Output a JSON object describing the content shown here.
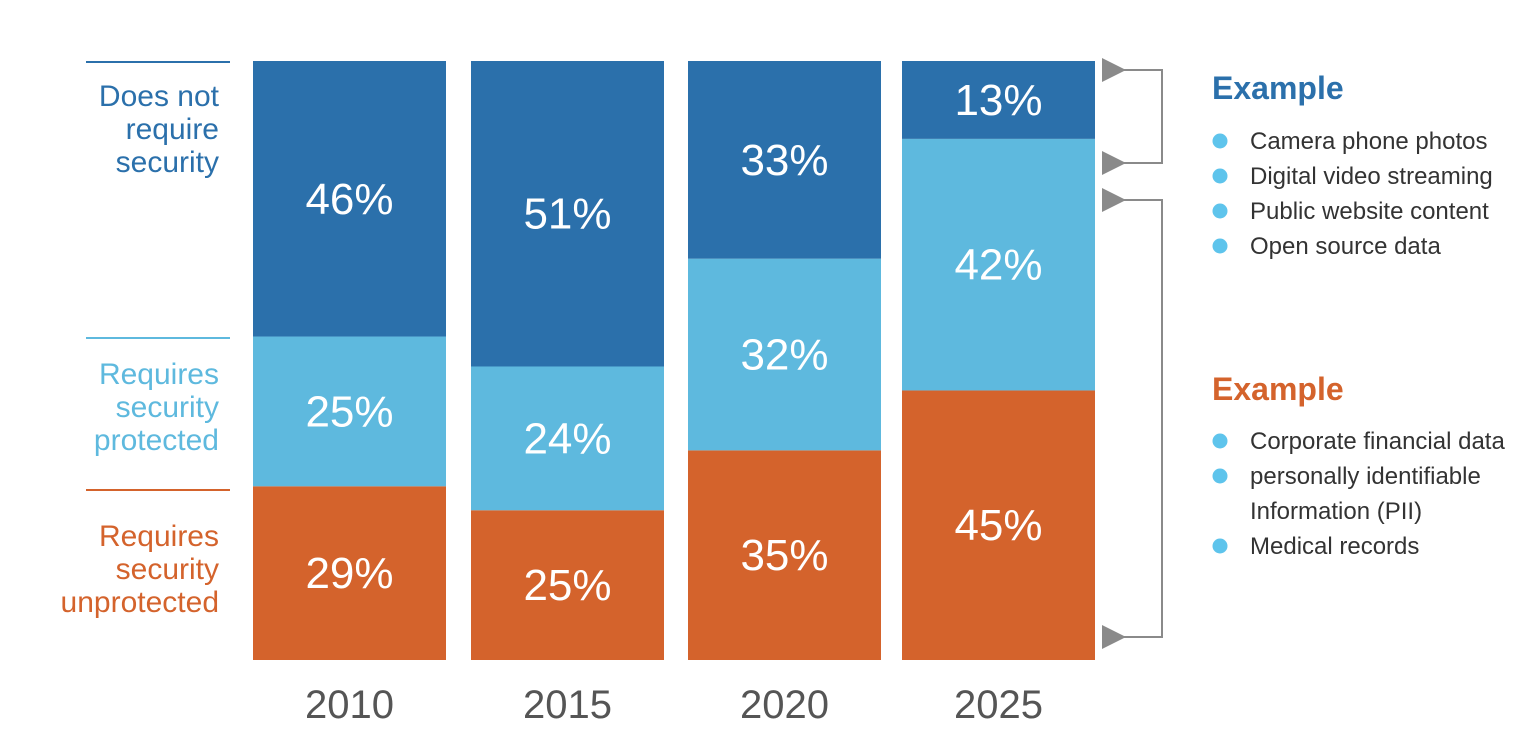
{
  "chart_data": {
    "type": "bar",
    "stacked": true,
    "categories": [
      "2010",
      "2015",
      "2020",
      "2025"
    ],
    "series": [
      {
        "name": "Requires security unprotected",
        "color": "#d4632c",
        "values": [
          29,
          25,
          35,
          45
        ],
        "labels": [
          "29%",
          "25%",
          "35%",
          "45%"
        ]
      },
      {
        "name": "Requires security protected",
        "color": "#5eb9de",
        "values": [
          25,
          24,
          32,
          42
        ],
        "labels": [
          "25%",
          "24%",
          "32%",
          "42%"
        ]
      },
      {
        "name": "Does not require security",
        "color": "#2b70ab",
        "values": [
          46,
          51,
          33,
          13
        ],
        "labels": [
          "46%",
          "51%",
          "33%",
          "13%"
        ]
      }
    ],
    "ylim": [
      0,
      100
    ],
    "legend": {
      "placement": "left",
      "entries": [
        {
          "lines": [
            "Does not",
            "require",
            "security"
          ],
          "color": "#2b70ab"
        },
        {
          "lines": [
            "Requires",
            "security",
            "protected"
          ],
          "color": "#5eb9de"
        },
        {
          "lines": [
            "Requires",
            "security",
            "unprotected"
          ],
          "color": "#d4632c"
        }
      ]
    }
  },
  "examples": [
    {
      "title": "Example",
      "title_color": "#2b70ab",
      "bullet_color": "#5ec4ec",
      "items": [
        "Camera phone photos",
        "Digital video streaming",
        "Public website content",
        "Open source data"
      ]
    },
    {
      "title": "Example",
      "title_color": "#d4632c",
      "bullet_color": "#5ec4ec",
      "items": [
        "Corporate financial data",
        "personally identifiable Information (PII)",
        "Medical records"
      ]
    }
  ],
  "bracket_color": "#8a8a8a"
}
